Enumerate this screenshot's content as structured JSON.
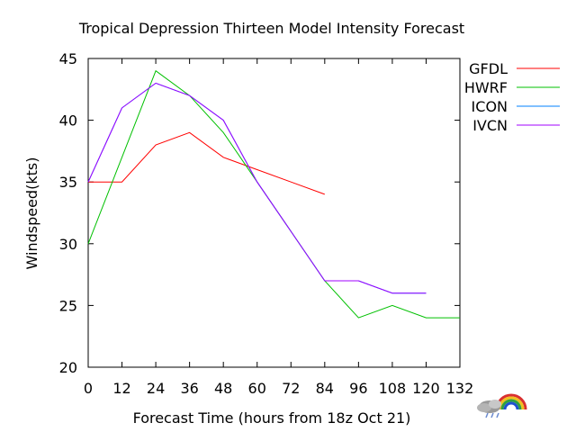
{
  "chart_data": {
    "type": "line",
    "title": "Tropical Depression Thirteen Model Intensity Forecast",
    "xlabel": "Forecast Time (hours from 18z Oct 21)",
    "ylabel": "Windspeed(kts)",
    "xlim": [
      0,
      132
    ],
    "ylim": [
      20,
      45
    ],
    "xticks": [
      "0",
      "12",
      "24",
      "36",
      "48",
      "60",
      "72",
      "84",
      "96",
      "108",
      "120",
      "132"
    ],
    "yticks": [
      "20",
      "25",
      "30",
      "35",
      "40",
      "45"
    ],
    "grid": false,
    "legend_position": "outside-right",
    "series": [
      {
        "name": "GFDL",
        "color": "#ff0000",
        "x": [
          0,
          12,
          24,
          36,
          48,
          60,
          72,
          84
        ],
        "y": [
          35,
          35,
          38,
          39,
          37,
          36,
          35,
          34
        ]
      },
      {
        "name": "HWRF",
        "color": "#00c000",
        "x": [
          0,
          12,
          24,
          36,
          48,
          60,
          72,
          84,
          96,
          108,
          120,
          132
        ],
        "y": [
          30,
          37,
          44,
          42,
          39,
          35,
          31,
          27,
          24,
          25,
          24,
          24
        ]
      },
      {
        "name": "ICON",
        "color": "#0080ff",
        "x": [
          0,
          12,
          24,
          36,
          48,
          60,
          72,
          84,
          96,
          108,
          120
        ],
        "y": [
          35,
          41,
          43,
          42,
          40,
          35,
          31,
          27,
          27,
          26,
          26
        ]
      },
      {
        "name": "IVCN",
        "color": "#a000ff",
        "x": [
          0,
          12,
          24,
          36,
          48,
          60,
          72,
          84,
          96,
          108,
          120
        ],
        "y": [
          35,
          41,
          43,
          42,
          40,
          35,
          31,
          27,
          27,
          26,
          26
        ]
      }
    ]
  },
  "logo": {
    "icon": "weather-cloud-rainbow-icon"
  }
}
